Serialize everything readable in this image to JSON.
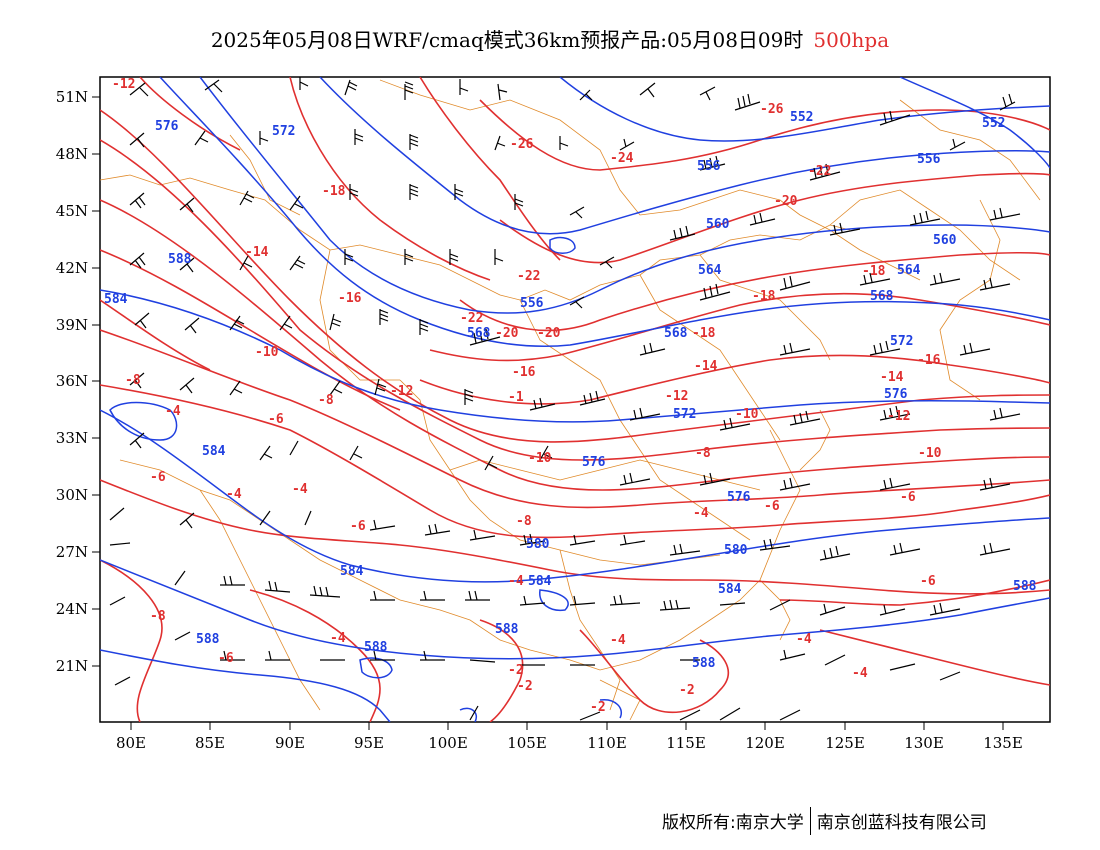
{
  "title": {
    "main": "2025年05月08日WRF/cmaq模式36km预报产品:05月08日09时",
    "level": "500hpa"
  },
  "footer": {
    "left": "版权所有:南京大学",
    "right": "南京创蓝科技有限公司"
  },
  "colors": {
    "temperature": "#e03030",
    "height": "#2040e0",
    "border": "#e08a2a",
    "wind": "#000000"
  },
  "axes": {
    "lon_labels": [
      "80E",
      "85E",
      "90E",
      "95E",
      "100E",
      "105E",
      "110E",
      "115E",
      "120E",
      "125E",
      "130E",
      "135E"
    ],
    "lat_labels": [
      "51N",
      "48N",
      "45N",
      "42N",
      "39N",
      "36N",
      "33N",
      "30N",
      "27N",
      "24N",
      "21N"
    ]
  },
  "temperature_labels": [
    "-12",
    "-26",
    "-24",
    "-26",
    "-22",
    "-20",
    "-18",
    "-14",
    "-16",
    "-22",
    "-10",
    "-20",
    "-18",
    "-16",
    "-18",
    "-16",
    "-8",
    "-4",
    "-12",
    "-14",
    "-6",
    "-8",
    "-6",
    "-14",
    "-12",
    "-10",
    "-6",
    "-8",
    "-4",
    "-6",
    "-4",
    "-10",
    "-8",
    "-6",
    "-6",
    "-4",
    "-4",
    "-4",
    "-2",
    "-2",
    "-2",
    "-2",
    "-4",
    "-12",
    "-16",
    "-16",
    "-1",
    "-8",
    "-8",
    "-10",
    "-16",
    "-22"
  ],
  "height_labels": [
    "576",
    "572",
    "552",
    "552",
    "556",
    "556",
    "560",
    "560",
    "564",
    "564",
    "568",
    "568",
    "568",
    "572",
    "572",
    "576",
    "576",
    "576",
    "580",
    "580",
    "584",
    "584",
    "584",
    "584",
    "584",
    "588",
    "588",
    "588",
    "588",
    "580",
    "556",
    "568"
  ]
}
